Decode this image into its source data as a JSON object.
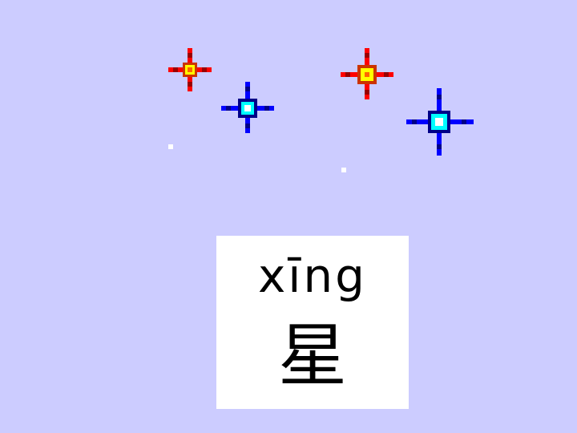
{
  "card": {
    "pinyin": "xīng",
    "hanzi": "星"
  },
  "colors": {
    "background": "#ccccff",
    "card": "#ffffff",
    "text": "#000000",
    "sparkle_red_arm": "#ff0000",
    "sparkle_red_dark": "#990000",
    "sparkle_red_core": "#ffff00",
    "sparkle_blue_arm": "#0000ff",
    "sparkle_blue_dark": "#000088",
    "sparkle_blue_core": "#00ffff"
  },
  "icons": {
    "red_sparkle": "red-sparkle-icon",
    "blue_sparkle": "blue-sparkle-icon",
    "white_dot": "white-dot-icon"
  }
}
